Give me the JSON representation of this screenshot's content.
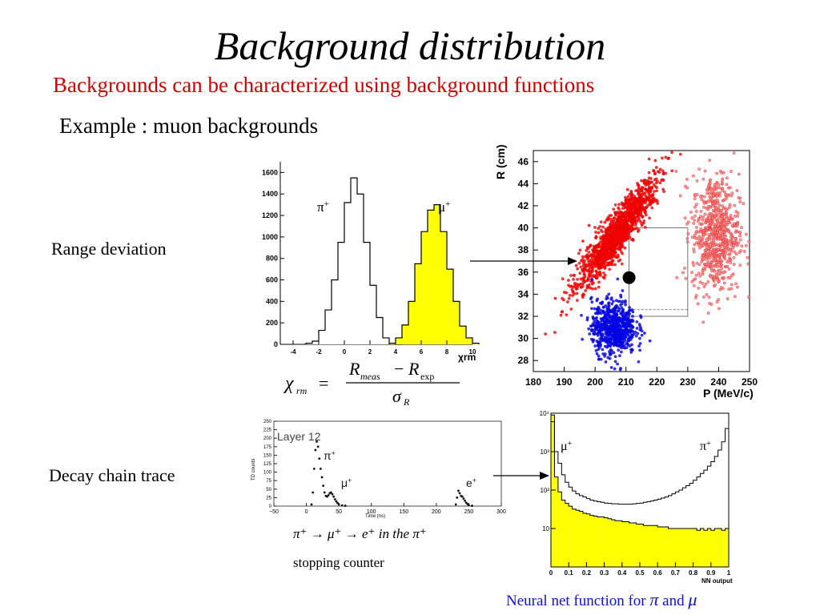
{
  "slide": {
    "title": "Background distribution",
    "subtitle": "Backgrounds can be characterized using background functions",
    "example": "Example : muon backgrounds",
    "range_label": "Range deviation",
    "decay_label": "Decay chain trace",
    "decay_caption_line1": "π⁺ → μ⁺ → e⁺ in the π⁺",
    "decay_caption_line2": "stopping counter",
    "nn_caption_text": "Neural net function for",
    "nn_caption_pi": "π",
    "nn_caption_and": "and",
    "nn_caption_mu": "μ",
    "formula": {
      "lhs": "χ",
      "lhs_sub": "rm",
      "eq": "=",
      "num_r1": "R",
      "num_r1_sub": "meas",
      "num_minus": "−",
      "num_r2": "R",
      "num_r2_sub": "exp",
      "den": "σ",
      "den_sub": "R"
    }
  },
  "chart_data": [
    {
      "type": "bar",
      "title": "",
      "xlabel": "χrm",
      "ylabel": "",
      "xlim": [
        -5,
        10
      ],
      "ylim": [
        0,
        1700
      ],
      "xticks": [
        "-4",
        "-2",
        "0",
        "2",
        "4",
        "6",
        "8",
        "10"
      ],
      "yticks": [
        "0",
        "200",
        "400",
        "600",
        "800",
        "1000",
        "1200",
        "1400",
        "1600"
      ],
      "bin_width": 0.5,
      "series": [
        {
          "name": "π⁺",
          "color": "#ffffff",
          "bin_start": -3.0,
          "values": [
            10,
            30,
            130,
            320,
            600,
            950,
            1320,
            1550,
            1400,
            950,
            550,
            250,
            60,
            10,
            0
          ]
        },
        {
          "name": "μ⁺",
          "color": "#ffff00",
          "bin_start": 3.5,
          "values": [
            10,
            60,
            180,
            400,
            750,
            1050,
            1250,
            1300,
            1050,
            700,
            400,
            170,
            60,
            10
          ]
        }
      ]
    },
    {
      "type": "scatter",
      "title": "",
      "xlabel": "P   (MeV/c)",
      "ylabel": "R   (cm)",
      "xlim": [
        180,
        250
      ],
      "ylim": [
        27,
        47
      ],
      "xticks": [
        "180",
        "190",
        "200",
        "210",
        "220",
        "230",
        "240",
        "250"
      ],
      "yticks": [
        "28",
        "30",
        "32",
        "34",
        "36",
        "38",
        "40",
        "42",
        "44",
        "46"
      ],
      "series": [
        {
          "name": "",
          "color": "#ff0000",
          "shape": "elongated",
          "center": [
            207,
            39.5
          ],
          "span_x": [
            192,
            223
          ],
          "span_y": [
            34,
            46
          ]
        },
        {
          "name": "",
          "color": "#ff8080",
          "shape": "blob",
          "center": [
            239,
            39.5
          ],
          "span_x": [
            231,
            248
          ],
          "span_y": [
            33,
            45
          ]
        },
        {
          "name": "",
          "color": "#0000ff",
          "shape": "blob",
          "center": [
            206,
            31
          ],
          "span_x": [
            198,
            214
          ],
          "span_y": [
            28.5,
            34
          ]
        }
      ],
      "marker_point": [
        211,
        35.5
      ]
    },
    {
      "type": "line",
      "title": "Layer  12",
      "xlabel": "Time (ns)",
      "ylabel": "TD counts",
      "xlim": [
        -50,
        300
      ],
      "ylim": [
        0,
        250
      ],
      "xticks": [
        "−50",
        "0",
        "50",
        "100",
        "150",
        "200",
        "250",
        "300"
      ],
      "yticks": [
        "0",
        "25",
        "50",
        "75",
        "100",
        "125",
        "150",
        "175",
        "200",
        "225",
        "250"
      ],
      "annotations": [
        "π⁺",
        "μ⁺",
        "e⁺"
      ],
      "series": [
        {
          "name": "",
          "x": [
            8,
            10,
            12,
            14,
            16,
            18,
            20,
            22,
            24,
            26,
            28,
            30,
            32,
            34,
            36,
            38,
            40,
            42,
            44,
            46,
            48,
            50,
            55,
            60,
            230,
            232,
            234,
            236,
            238,
            240,
            242,
            244,
            246,
            248,
            250,
            255
          ],
          "y": [
            5,
            40,
            110,
            165,
            190,
            175,
            140,
            110,
            85,
            60,
            40,
            30,
            28,
            32,
            38,
            40,
            35,
            28,
            20,
            14,
            9,
            5,
            2,
            1,
            5,
            25,
            45,
            38,
            30,
            28,
            22,
            16,
            10,
            6,
            3,
            1
          ]
        }
      ]
    },
    {
      "type": "bar",
      "title": "",
      "xlabel": "NN output",
      "ylabel": "",
      "yscale": "log",
      "xlim": [
        0,
        1
      ],
      "ylim": [
        1,
        10000
      ],
      "xticks": [
        "0",
        "0.1",
        "0.2",
        "0.3",
        "0.4",
        "0.5",
        "0.6",
        "0.7",
        "0.8",
        "0.9",
        "1"
      ],
      "yticks": [
        "10",
        "10²",
        "10³",
        "10⁴"
      ],
      "series": [
        {
          "name": "μ⁺",
          "color": "#ffff00",
          "values": [
            9000,
            220,
            90,
            55,
            45,
            38,
            32,
            30,
            28,
            25,
            24,
            22,
            21,
            20,
            20,
            19,
            18,
            17,
            16,
            16,
            15,
            15,
            14,
            14,
            13,
            13,
            12,
            12,
            12,
            12,
            11,
            11,
            11,
            10,
            10,
            10,
            10,
            10,
            10,
            10,
            10,
            9,
            10,
            9,
            10,
            9,
            10,
            10,
            9,
            10
          ]
        },
        {
          "name": "π⁺",
          "color": "#ffffff",
          "values": [
            6000,
            1000,
            500,
            250,
            160,
            120,
            95,
            80,
            72,
            66,
            60,
            55,
            52,
            50,
            48,
            46,
            45,
            44,
            44,
            43,
            43,
            43,
            43,
            44,
            45,
            46,
            48,
            50,
            52,
            55,
            58,
            62,
            66,
            72,
            80,
            90,
            100,
            115,
            130,
            150,
            180,
            220,
            270,
            330,
            420,
            550,
            750,
            1100,
            1800,
            4000
          ]
        }
      ]
    }
  ]
}
